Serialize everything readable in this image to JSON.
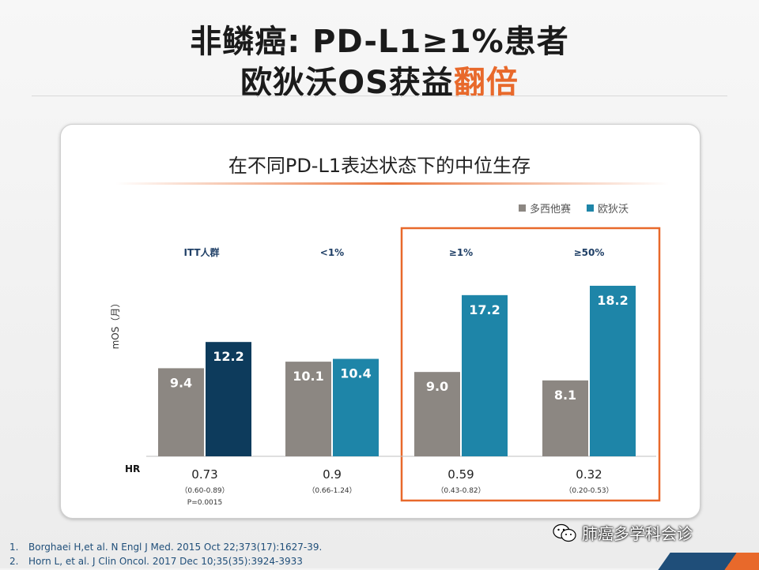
{
  "slide_title": {
    "line1": "非鳞癌: PD-L1≥1%患者",
    "line2_prefix": "欧狄沃OS获益",
    "line2_emphasis": "翻倍"
  },
  "colors": {
    "docetaxel": "#8c8782",
    "opdivo": "#1e85a8",
    "opdivo_itt": "#0d3b5c",
    "highlight_box": "#e8692b"
  },
  "chart_data": {
    "type": "bar",
    "title": "在不同PD-L1表达状态下的中位生存",
    "ylabel": "mOS（月）",
    "xlabel": "",
    "ylim": [
      0,
      20
    ],
    "categories": [
      "ITT人群",
      "<1%",
      "≥1%",
      "≥50%"
    ],
    "series": [
      {
        "name": "多西他赛",
        "values": [
          9.4,
          10.1,
          9.0,
          8.1
        ]
      },
      {
        "name": "欧狄沃",
        "values": [
          12.2,
          10.4,
          17.2,
          18.2
        ]
      }
    ],
    "hr_label": "HR",
    "hr": [
      "0.73",
      "0.9",
      "0.59",
      "0.32"
    ],
    "hr_ci": [
      "（0.60-0.89）",
      "（0.66-1.24）",
      "（0.43-0.82）",
      "（0.20-0.53）"
    ],
    "p_value": [
      "P=0.0015",
      "",
      "",
      ""
    ],
    "highlighted_groups": [
      "≥1%",
      "≥50%"
    ],
    "legend_position": "top-right"
  },
  "footnotes": [
    {
      "num": "1.",
      "text": "Borghaei H,et al. N Engl J Med. 2015 Oct 22;373(17):1627-39."
    },
    {
      "num": "2.",
      "text": "Horn L, et al. J Clin Oncol. 2017 Dec 10;35(35):3924-3933"
    }
  ],
  "watermark": {
    "text": "肺癌多学科会诊",
    "icon": "wechat-icon"
  }
}
